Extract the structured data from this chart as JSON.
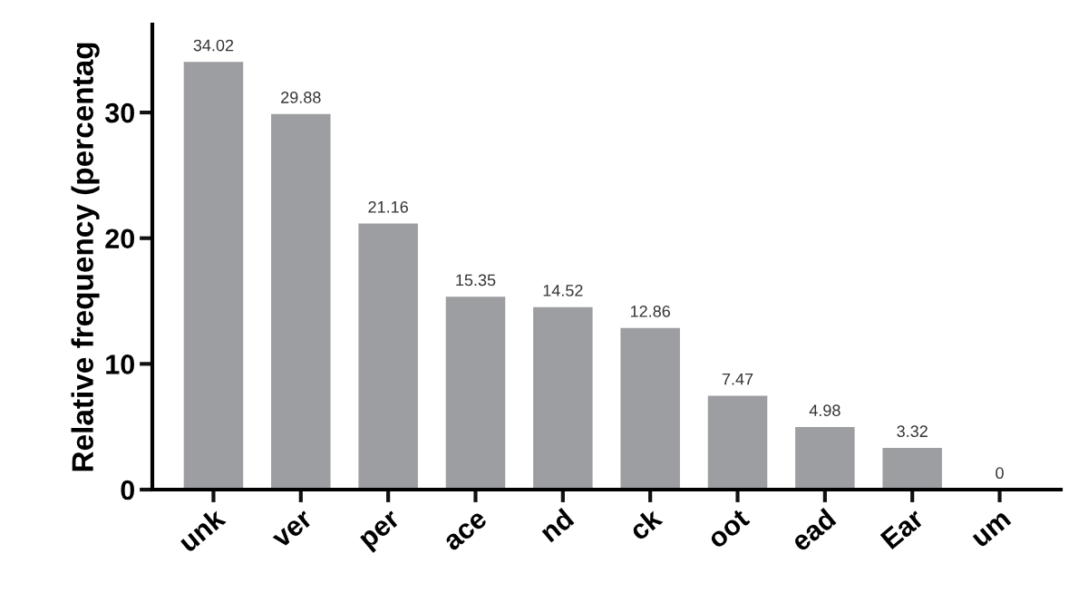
{
  "chart_data": {
    "type": "bar",
    "ylabel": "Relative frequency (percentag",
    "categories": [
      "unk",
      "ver",
      "per",
      "ace",
      "nd",
      "ck",
      "oot",
      "ead",
      "Ear",
      "um"
    ],
    "values": [
      34.02,
      29.88,
      21.16,
      15.35,
      14.52,
      12.86,
      7.47,
      4.98,
      3.32,
      0
    ],
    "color": "#9d9ea1",
    "ylim": [
      0,
      37
    ],
    "yticks": [
      0,
      10,
      20,
      30
    ],
    "data_labels": true,
    "grid": false
  }
}
